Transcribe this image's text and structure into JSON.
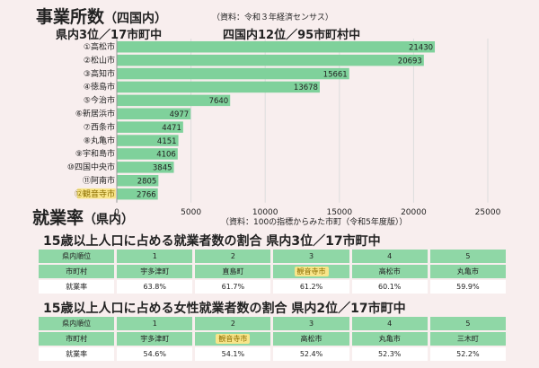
{
  "header": {
    "title": "事業所数",
    "title_sub": "（四国内）",
    "source": "（資料：令和３年経済センサス）",
    "rank_pref": "県内3位／17市町中",
    "rank_shikoku": "四国内12位／95市町村中"
  },
  "chart_data": {
    "type": "bar",
    "orientation": "horizontal",
    "categories": [
      "①高松市",
      "②松山市",
      "③高知市",
      "④徳島市",
      "⑤今治市",
      "⑥新居浜市",
      "⑦西条市",
      "⑧丸亀市",
      "⑨宇和島市",
      "⑩四国中央市",
      "⑪阿南市",
      "⑫観音寺市"
    ],
    "values": [
      21430,
      20693,
      15661,
      13678,
      7640,
      4977,
      4471,
      4151,
      4106,
      3845,
      2805,
      2766
    ],
    "highlight_index": 11,
    "xlim": [
      0,
      25000
    ],
    "xticks": [
      "0",
      "5000",
      "10000",
      "15000",
      "20000",
      "25000"
    ],
    "bar_color": "#7fd19b",
    "highlight_color": "#f8e58a",
    "grid": true
  },
  "employment": {
    "title": "就業率",
    "title_sub": "（県内）",
    "source": "（資料：100の指標からみた市町（令和5年度版））",
    "table1": {
      "title": "15歳以上人口に占める就業者数の割合 県内3位／17市町中",
      "header_label": "県内順位",
      "ranks": [
        "1",
        "2",
        "3",
        "4",
        "5"
      ],
      "city_label": "市町村",
      "cities": [
        "宇多津町",
        "直島町",
        "観音寺市",
        "高松市",
        "丸亀市"
      ],
      "rate_label": "就業率",
      "rates": [
        "63.8%",
        "61.7%",
        "61.2%",
        "60.1%",
        "59.9%"
      ]
    },
    "table2": {
      "title": "15歳以上人口に占める女性就業者数の割合 県内2位／17市町中",
      "header_label": "県内順位",
      "ranks": [
        "1",
        "2",
        "3",
        "4",
        "5"
      ],
      "city_label": "市町村",
      "cities": [
        "宇多津町",
        "観音寺市",
        "高松市",
        "丸亀市",
        "三木町"
      ],
      "rate_label": "就業率",
      "rates": [
        "54.6%",
        "54.1%",
        "52.4%",
        "52.3%",
        "52.2%"
      ]
    }
  }
}
